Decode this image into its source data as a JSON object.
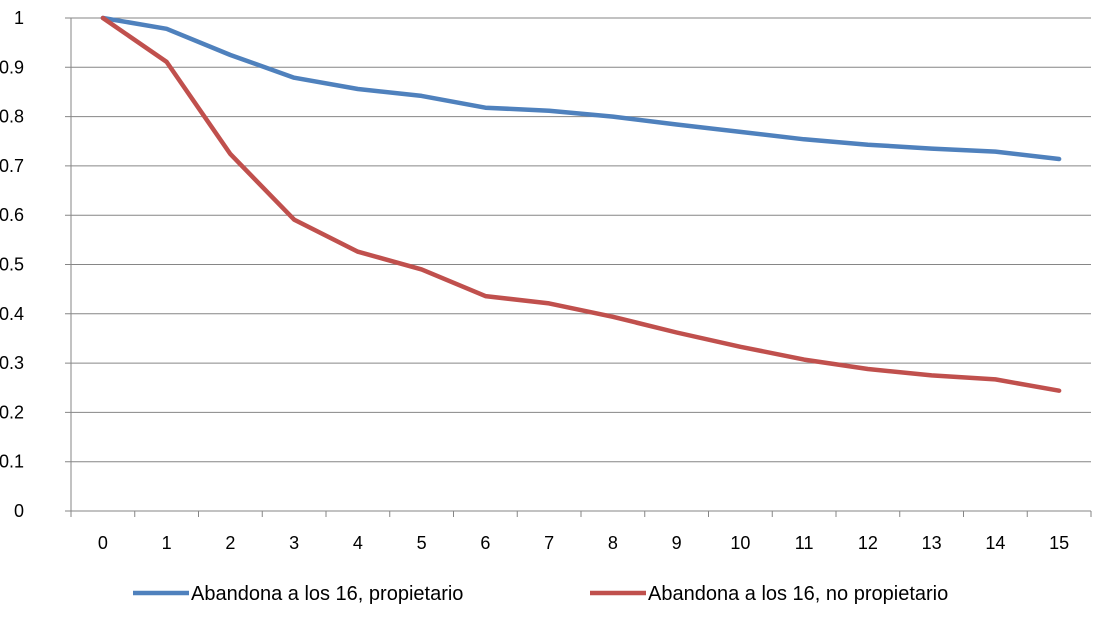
{
  "chart_data": {
    "type": "line",
    "title": "",
    "xlabel": "",
    "ylabel": "",
    "x": [
      0,
      1,
      2,
      3,
      4,
      5,
      6,
      7,
      8,
      9,
      10,
      11,
      12,
      13,
      14,
      15
    ],
    "ylim": [
      0,
      1
    ],
    "yticks": [
      "0",
      "0.1",
      "0.2",
      "0.3",
      "0.4",
      "0.5",
      "0.6",
      "0.7",
      "0.8",
      "0.9",
      "1"
    ],
    "xticks": [
      "0",
      "1",
      "2",
      "3",
      "4",
      "5",
      "6",
      "7",
      "8",
      "9",
      "10",
      "11",
      "12",
      "13",
      "14",
      "15"
    ],
    "grid": "horizontal",
    "legend_position": "bottom",
    "series": [
      {
        "name": "Abandona a los 16, propietario",
        "color": "#4f81bd",
        "values": [
          1.0,
          0.978,
          0.925,
          0.879,
          0.856,
          0.842,
          0.818,
          0.812,
          0.8,
          0.784,
          0.769,
          0.754,
          0.743,
          0.735,
          0.729,
          0.714
        ]
      },
      {
        "name": "Abandona a los 16, no propietario",
        "color": "#c0504d",
        "values": [
          1.0,
          0.911,
          0.724,
          0.591,
          0.526,
          0.49,
          0.436,
          0.421,
          0.394,
          0.362,
          0.333,
          0.307,
          0.288,
          0.275,
          0.267,
          0.244
        ]
      }
    ]
  }
}
